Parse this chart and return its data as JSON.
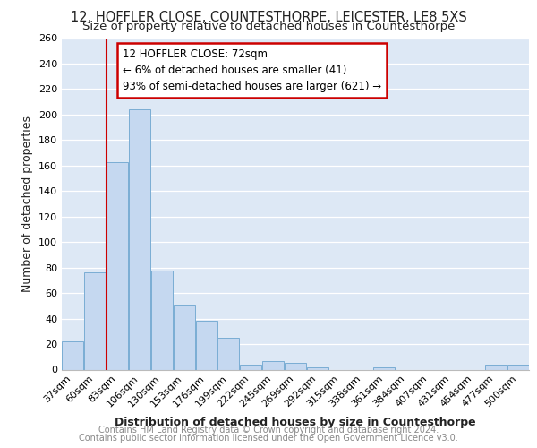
{
  "title1": "12, HOFFLER CLOSE, COUNTESTHORPE, LEICESTER, LE8 5XS",
  "title2": "Size of property relative to detached houses in Countesthorpe",
  "xlabel": "Distribution of detached houses by size in Countesthorpe",
  "ylabel": "Number of detached properties",
  "categories": [
    "37sqm",
    "60sqm",
    "83sqm",
    "106sqm",
    "130sqm",
    "153sqm",
    "176sqm",
    "199sqm",
    "222sqm",
    "245sqm",
    "269sqm",
    "292sqm",
    "315sqm",
    "338sqm",
    "361sqm",
    "384sqm",
    "407sqm",
    "431sqm",
    "454sqm",
    "477sqm",
    "500sqm"
  ],
  "values": [
    22,
    76,
    163,
    204,
    78,
    51,
    38,
    25,
    4,
    7,
    5,
    2,
    0,
    0,
    2,
    0,
    0,
    0,
    0,
    4,
    4
  ],
  "bar_color": "#c5d8f0",
  "bar_edge_color": "#7aadd4",
  "annotation_title": "12 HOFFLER CLOSE: 72sqm",
  "annotation_line1": "← 6% of detached houses are smaller (41)",
  "annotation_line2": "93% of semi-detached houses are larger (621) →",
  "annotation_box_color": "#ffffff",
  "annotation_box_edge": "#cc0000",
  "vline_color": "#cc0000",
  "footnote1": "Contains HM Land Registry data © Crown copyright and database right 2024.",
  "footnote2": "Contains public sector information licensed under the Open Government Licence v3.0.",
  "ylim": [
    0,
    260
  ],
  "yticks": [
    0,
    20,
    40,
    60,
    80,
    100,
    120,
    140,
    160,
    180,
    200,
    220,
    240,
    260
  ],
  "background_color": "#dde8f5",
  "grid_color": "#ffffff",
  "title1_fontsize": 10.5,
  "title2_fontsize": 9.5,
  "axis_label_fontsize": 9,
  "tick_fontsize": 8,
  "footnote_fontsize": 7
}
